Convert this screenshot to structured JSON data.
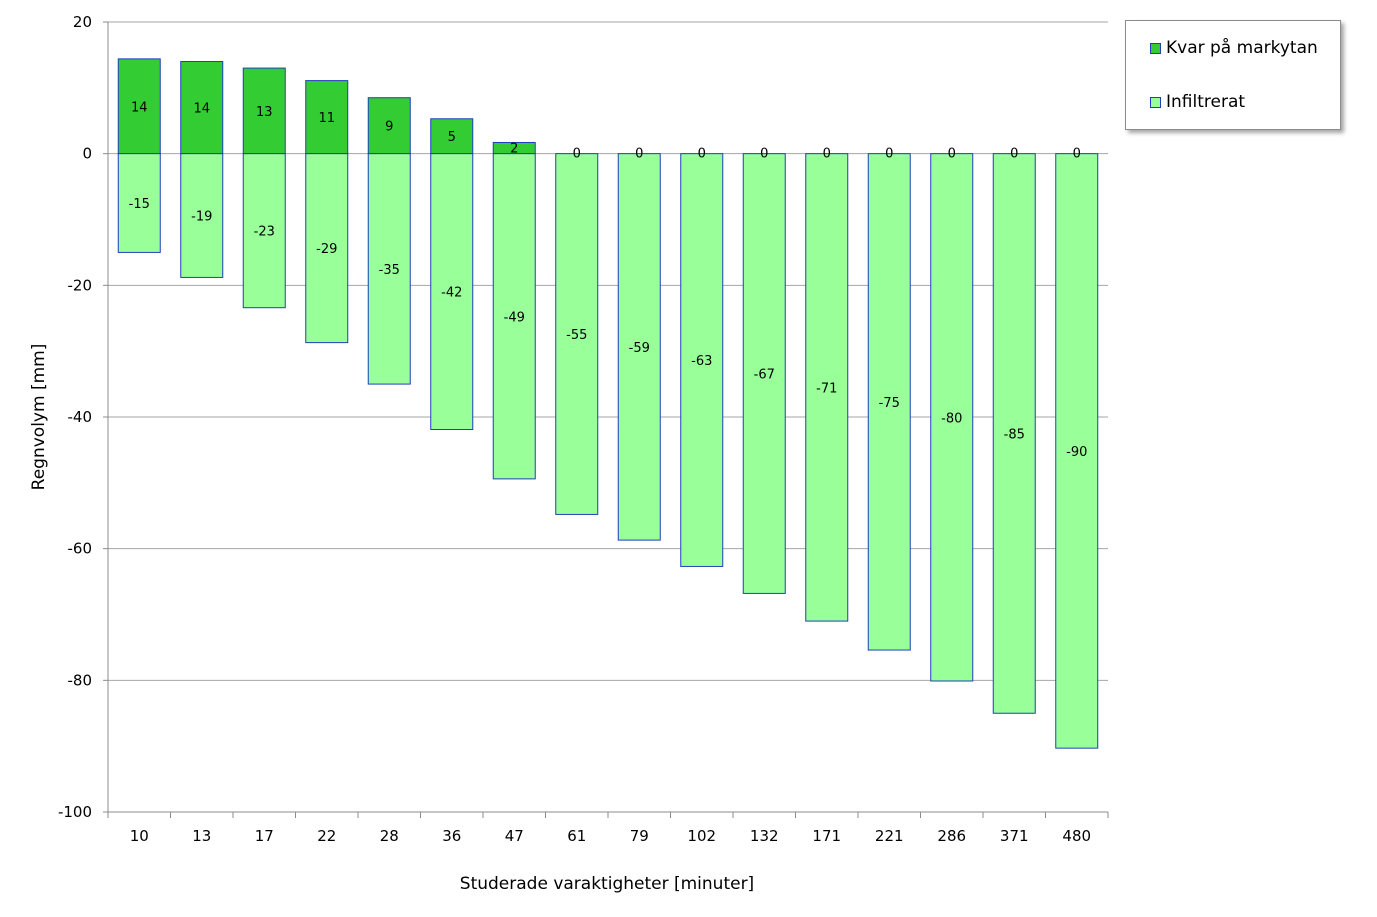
{
  "chart_data": {
    "type": "bar",
    "stacked": true,
    "xlabel": "Studerade varaktigheter [minuter]",
    "ylabel": "Regnvolym [mm]",
    "ylim": [
      -100,
      20
    ],
    "yticks": [
      "20",
      "0",
      "-20",
      "-40",
      "-60",
      "-80",
      "-100"
    ],
    "grid": true,
    "legend_position": "top-right",
    "categories": [
      "10",
      "13",
      "17",
      "22",
      "28",
      "36",
      "47",
      "61",
      "79",
      "102",
      "132",
      "171",
      "221",
      "286",
      "371",
      "480"
    ],
    "series": [
      {
        "name": "Kvar på markytan",
        "color": "#33cc33",
        "values": [
          14.4,
          14.0,
          13.0,
          11.1,
          8.5,
          5.3,
          1.7,
          0,
          0,
          0,
          0,
          0,
          0,
          0,
          0,
          0
        ],
        "labels": [
          "14",
          "14",
          "13",
          "11",
          "9",
          "5",
          "2",
          "0",
          "0",
          "0",
          "0",
          "0",
          "0",
          "0",
          "0",
          "0"
        ]
      },
      {
        "name": "Infiltrerat",
        "color": "#99ff99",
        "values": [
          -15.0,
          -18.8,
          -23.4,
          -28.7,
          -35.0,
          -41.9,
          -49.4,
          -54.8,
          -58.7,
          -62.7,
          -66.8,
          -71.0,
          -75.4,
          -80.1,
          -85.0,
          -90.3
        ],
        "labels": [
          "-15",
          "-19",
          "-23",
          "-29",
          "-35",
          "-42",
          "-49",
          "-55",
          "-59",
          "-63",
          "-67",
          "-71",
          "-75",
          "-80",
          "-85",
          "-90"
        ]
      }
    ]
  }
}
